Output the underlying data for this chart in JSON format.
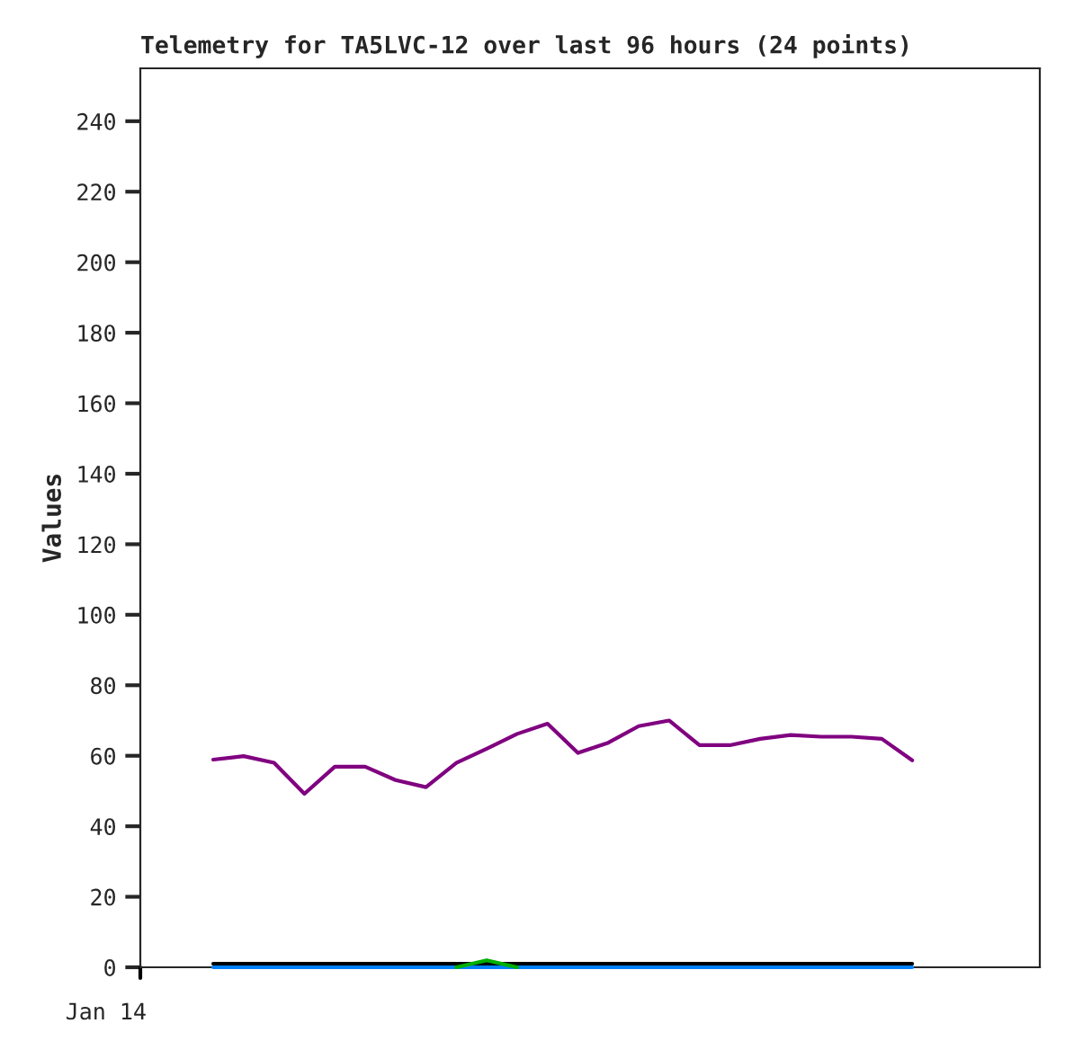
{
  "chart_data": {
    "type": "line",
    "title": "Telemetry for TA5LVC-12 over last 96 hours (24 points)",
    "ylabel": "Values",
    "categories": [
      null,
      null,
      null,
      null,
      null,
      null,
      null,
      null,
      null,
      null,
      null,
      null,
      null,
      null,
      null,
      null,
      null,
      null,
      null,
      null,
      null,
      null,
      null,
      null
    ],
    "annotations": [
      "Jan 14"
    ],
    "series": [
      {
        "color": "#800080",
        "values": [
          58.9,
          59.9,
          58.0,
          49.2,
          56.9,
          56.9,
          53.1,
          51.1,
          58.0,
          62.0,
          66.2,
          69.1,
          60.8,
          63.7,
          68.4,
          70.0,
          63.0,
          63.0,
          64.8,
          65.9,
          65.4,
          65.4,
          64.8,
          58.7
        ]
      },
      {
        "color": "#000000",
        "values": [
          1,
          1,
          1,
          1,
          1,
          1,
          1,
          1,
          1,
          1,
          1,
          1,
          1,
          1,
          1,
          1,
          1,
          1,
          1,
          1,
          1,
          1,
          1,
          1
        ]
      },
      {
        "color": "#0080ff",
        "values": [
          0,
          0,
          0,
          0,
          0,
          0,
          0,
          0,
          0,
          0,
          0,
          0,
          0,
          0,
          0,
          0,
          0,
          0,
          0,
          0,
          0,
          0,
          0,
          0
        ]
      },
      {
        "color": "#00b000",
        "values": [
          null,
          null,
          null,
          null,
          null,
          null,
          null,
          null,
          0,
          2,
          0,
          null,
          null,
          null,
          null,
          null,
          null,
          null,
          null,
          null,
          null,
          null,
          null,
          null
        ]
      }
    ],
    "ylim": [
      0,
      255
    ],
    "yticks": [
      0,
      20,
      40,
      60,
      80,
      100,
      120,
      140,
      160,
      180,
      200,
      220,
      240
    ],
    "grid": false,
    "legend": false,
    "marker": "none",
    "line_style": "solid"
  }
}
